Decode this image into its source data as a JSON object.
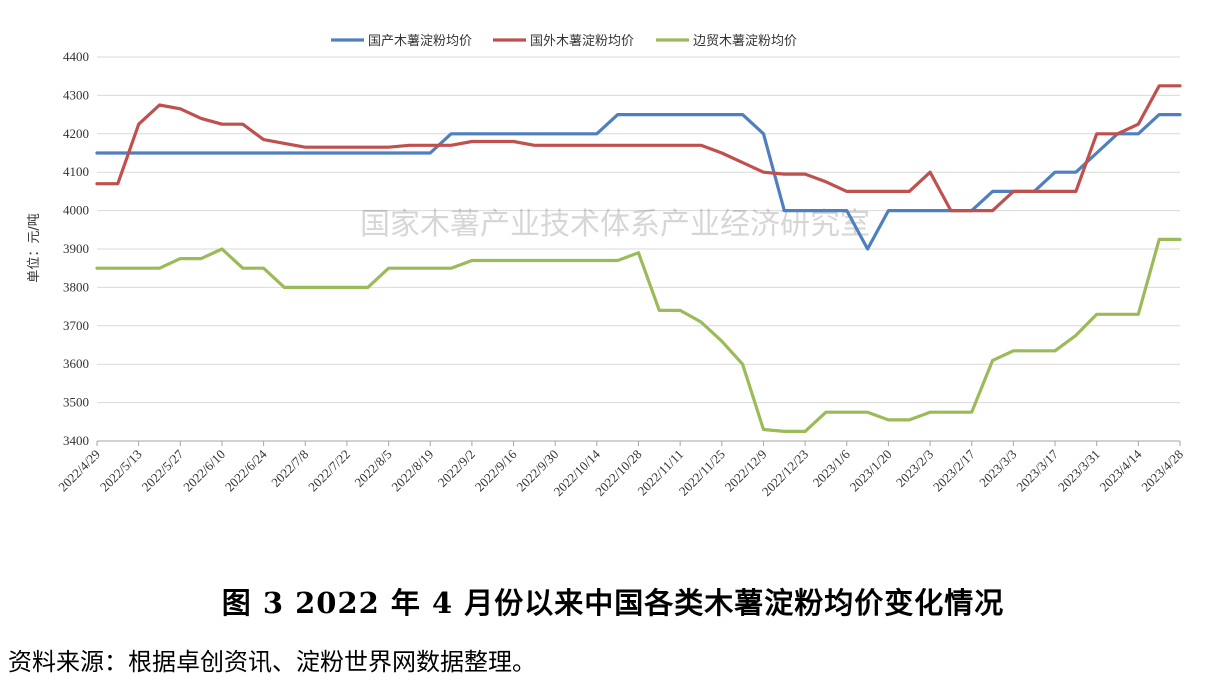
{
  "chart_data": {
    "type": "line",
    "ylabel": "单位：元/吨",
    "ylim": [
      3400,
      4400
    ],
    "yticks": [
      3400,
      3500,
      3600,
      3700,
      3800,
      3900,
      4000,
      4100,
      4200,
      4300,
      4400
    ],
    "grid": true,
    "legend": "top-center",
    "watermark": "国家木薯产业技术体系产业经济研究室",
    "x_tick_labels": [
      "2022/4/29",
      "2022/5/13",
      "2022/5/27",
      "2022/6/10",
      "2022/6/24",
      "2022/7/8",
      "2022/7/22",
      "2022/8/5",
      "2022/8/19",
      "2022/9/2",
      "2022/9/16",
      "2022/9/30",
      "2022/10/14",
      "2022/10/28",
      "2022/11/11",
      "2022/11/25",
      "2022/12/9",
      "2022/12/23",
      "2023/1/6",
      "2023/1/20",
      "2023/2/3",
      "2023/2/17",
      "2023/3/3",
      "2023/3/17",
      "2023/3/31",
      "2023/4/14",
      "2023/4/28"
    ],
    "x": [
      "2022/4/29",
      "2022/5/6",
      "2022/5/13",
      "2022/5/20",
      "2022/5/27",
      "2022/6/3",
      "2022/6/10",
      "2022/6/17",
      "2022/6/24",
      "2022/7/1",
      "2022/7/8",
      "2022/7/15",
      "2022/7/22",
      "2022/7/29",
      "2022/8/5",
      "2022/8/12",
      "2022/8/19",
      "2022/8/26",
      "2022/9/2",
      "2022/9/9",
      "2022/9/16",
      "2022/9/23",
      "2022/9/30",
      "2022/10/7",
      "2022/10/14",
      "2022/10/21",
      "2022/10/28",
      "2022/11/4",
      "2022/11/11",
      "2022/11/18",
      "2022/11/25",
      "2022/12/2",
      "2022/12/9",
      "2022/12/16",
      "2022/12/23",
      "2022/12/30",
      "2023/1/6",
      "2023/1/13",
      "2023/1/20",
      "2023/1/27",
      "2023/2/3",
      "2023/2/10",
      "2023/2/17",
      "2023/2/24",
      "2023/3/3",
      "2023/3/10",
      "2023/3/17",
      "2023/3/24",
      "2023/3/31",
      "2023/4/7",
      "2023/4/14",
      "2023/4/21",
      "2023/4/28"
    ],
    "series": [
      {
        "name": "国产木薯淀粉均价",
        "color": "#4f7fbf",
        "values": [
          4150,
          4150,
          4150,
          4150,
          4150,
          4150,
          4150,
          4150,
          4150,
          4150,
          4150,
          4150,
          4150,
          4150,
          4150,
          4150,
          4150,
          4200,
          4200,
          4200,
          4200,
          4200,
          4200,
          4200,
          4200,
          4250,
          4250,
          4250,
          4250,
          4250,
          4250,
          4250,
          4200,
          4000,
          4000,
          4000,
          4000,
          3900,
          4000,
          4000,
          4000,
          4000,
          4000,
          4050,
          4050,
          4050,
          4100,
          4100,
          4150,
          4200,
          4200,
          4250,
          4250
        ]
      },
      {
        "name": "国外木薯淀粉均价",
        "color": "#c0504d",
        "values": [
          4070,
          4070,
          4225,
          4275,
          4265,
          4240,
          4225,
          4225,
          4185,
          4175,
          4165,
          4165,
          4165,
          4165,
          4165,
          4170,
          4170,
          4170,
          4180,
          4180,
          4180,
          4170,
          4170,
          4170,
          4170,
          4170,
          4170,
          4170,
          4170,
          4170,
          4150,
          4125,
          4100,
          4095,
          4095,
          4075,
          4050,
          4050,
          4050,
          4050,
          4100,
          4000,
          4000,
          4000,
          4050,
          4050,
          4050,
          4050,
          4200,
          4200,
          4225,
          4325,
          4325
        ]
      },
      {
        "name": "边贸木薯淀粉均价",
        "color": "#9bbb59",
        "values": [
          3850,
          3850,
          3850,
          3850,
          3875,
          3875,
          3900,
          3850,
          3850,
          3800,
          3800,
          3800,
          3800,
          3800,
          3850,
          3850,
          3850,
          3850,
          3870,
          3870,
          3870,
          3870,
          3870,
          3870,
          3870,
          3870,
          3890,
          3740,
          3740,
          3710,
          3660,
          3600,
          3430,
          3425,
          3425,
          3475,
          3475,
          3475,
          3455,
          3455,
          3475,
          3475,
          3475,
          3610,
          3635,
          3635,
          3635,
          3675,
          3730,
          3730,
          3730,
          3925,
          3925
        ]
      }
    ]
  },
  "caption": "图 3    2022 年 4 月份以来中国各类木薯淀粉均价变化情况",
  "source": "资料来源：根据卓创资讯、淀粉世界网数据整理。"
}
